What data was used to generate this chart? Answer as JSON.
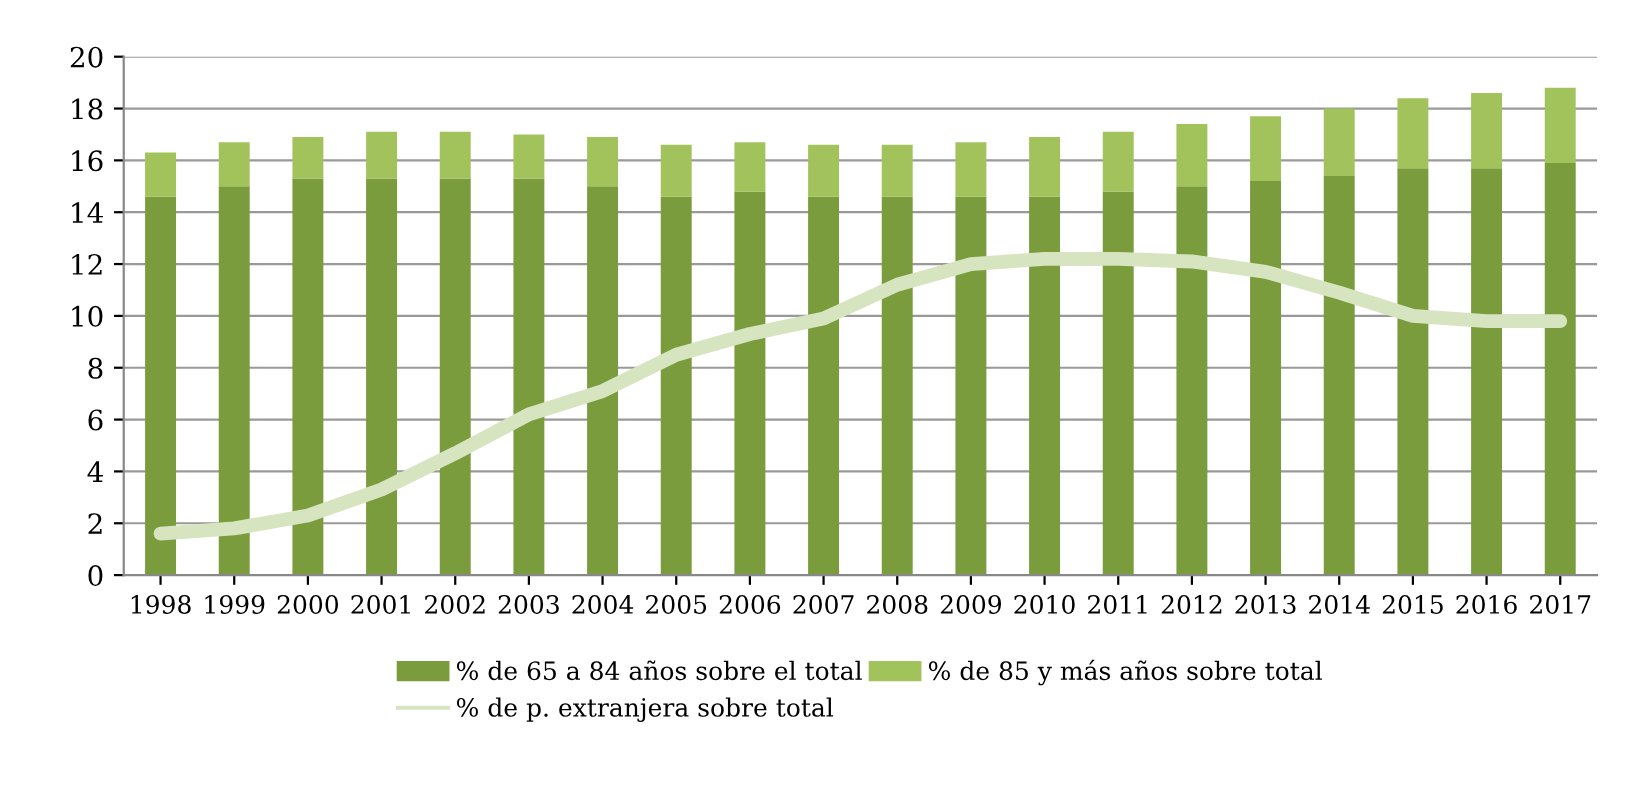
{
  "chart_data": {
    "type": "bar",
    "stacked": true,
    "categories": [
      "1998",
      "1999",
      "2000",
      "2001",
      "2002",
      "2003",
      "2004",
      "2005",
      "2006",
      "2007",
      "2008",
      "2009",
      "2010",
      "2011",
      "2012",
      "2013",
      "2014",
      "2015",
      "2016",
      "2017"
    ],
    "series": [
      {
        "name": "% de 65 a 84 años sobre el total",
        "color": "#7a9c3c",
        "values": [
          14.6,
          15.0,
          15.3,
          15.3,
          15.3,
          15.3,
          15.0,
          14.6,
          14.8,
          14.6,
          14.6,
          14.6,
          14.6,
          14.8,
          15.0,
          15.2,
          15.4,
          15.7,
          15.7,
          15.9
        ]
      },
      {
        "name": "% de 85 y más años sobre total",
        "color": "#a2c35c",
        "values": [
          1.7,
          1.7,
          1.6,
          1.8,
          1.8,
          1.7,
          1.9,
          2.0,
          1.9,
          2.0,
          2.0,
          2.1,
          2.3,
          2.3,
          2.4,
          2.5,
          2.6,
          2.7,
          2.9,
          2.9
        ]
      },
      {
        "name": "% de p. extranjera sobre total",
        "type": "line",
        "color": "#d6e4bf",
        "values": [
          1.6,
          1.8,
          2.3,
          3.3,
          4.7,
          6.2,
          7.1,
          8.5,
          9.3,
          9.9,
          11.2,
          12.0,
          12.2,
          12.2,
          12.1,
          11.7,
          10.9,
          10.0,
          9.8,
          9.8
        ]
      }
    ],
    "ylim": [
      0,
      20
    ],
    "yticks": [
      0,
      2,
      4,
      6,
      8,
      10,
      12,
      14,
      16,
      18,
      20
    ],
    "grid": "y",
    "legend": "bottom"
  }
}
